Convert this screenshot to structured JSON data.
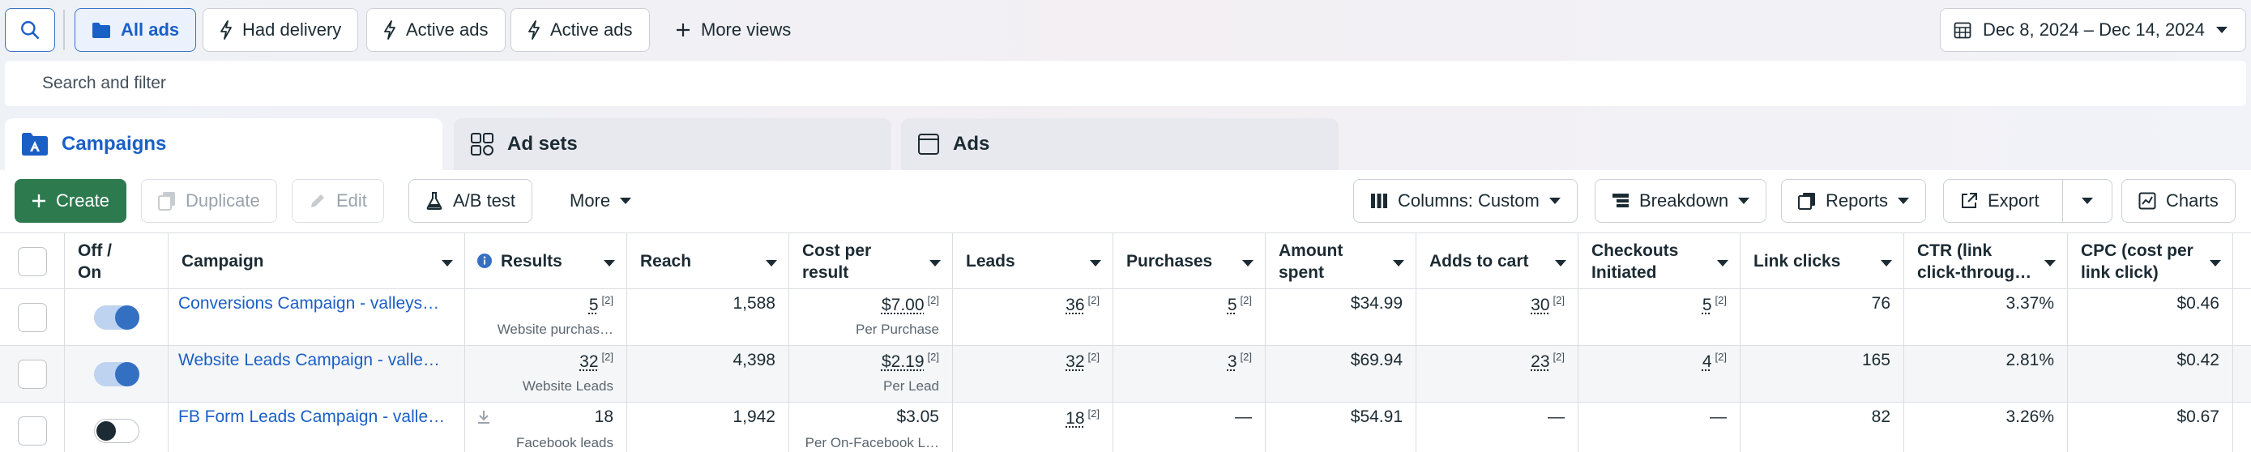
{
  "topbar": {
    "views": [
      {
        "label": "All ads"
      },
      {
        "label": "Had delivery"
      },
      {
        "label": "Active ads"
      },
      {
        "label": "Active ads"
      }
    ],
    "more_views": "More views",
    "date_range": "Dec 8, 2024 – Dec 14, 2024"
  },
  "search": {
    "placeholder": "Search and filter"
  },
  "tabs": {
    "campaigns": "Campaigns",
    "adsets": "Ad sets",
    "ads": "Ads"
  },
  "toolbar": {
    "create": "Create",
    "duplicate": "Duplicate",
    "edit": "Edit",
    "ab_test": "A/B test",
    "more": "More",
    "columns": "Columns: Custom",
    "breakdown": "Breakdown",
    "reports": "Reports",
    "export": "Export",
    "charts": "Charts"
  },
  "table": {
    "headers": {
      "offon_1": "Off /",
      "offon_2": "On",
      "campaign": "Campaign",
      "results": "Results",
      "reach": "Reach",
      "cpr_1": "Cost per",
      "cpr_2": "result",
      "leads": "Leads",
      "purchases": "Purchases",
      "spent_1": "Amount",
      "spent_2": "spent",
      "atc": "Adds to cart",
      "checkout_1": "Checkouts",
      "checkout_2": "Initiated",
      "link_clicks": "Link clicks",
      "ctr_1": "CTR (link",
      "ctr_2": "click-throug…",
      "cpc_1": "CPC (cost per",
      "cpc_2": "link click)"
    },
    "rows": [
      {
        "campaign": "Conversions Campaign - valleys…",
        "status": "on",
        "results": "5",
        "results_sup": "[2]",
        "results_sub": "Website purchas…",
        "reach": "1,588",
        "cpr": "$7.00",
        "cpr_sup": "[2]",
        "cpr_sub": "Per Purchase",
        "leads": "36",
        "leads_sup": "[2]",
        "purchases": "5",
        "purchases_sup": "[2]",
        "spent": "$34.99",
        "atc": "30",
        "atc_sup": "[2]",
        "checkouts": "5",
        "checkouts_sup": "[2]",
        "link_clicks": "76",
        "ctr": "3.37%",
        "cpc": "$0.46"
      },
      {
        "campaign": "Website Leads Campaign - valle…",
        "status": "on",
        "results": "32",
        "results_sup": "[2]",
        "results_sub": "Website Leads",
        "reach": "4,398",
        "cpr": "$2.19",
        "cpr_sup": "[2]",
        "cpr_sub": "Per Lead",
        "leads": "32",
        "leads_sup": "[2]",
        "purchases": "3",
        "purchases_sup": "[2]",
        "spent": "$69.94",
        "atc": "23",
        "atc_sup": "[2]",
        "checkouts": "4",
        "checkouts_sup": "[2]",
        "link_clicks": "165",
        "ctr": "2.81%",
        "cpc": "$0.42"
      },
      {
        "campaign": "FB Form Leads Campaign - valle…",
        "status": "off",
        "results": "18",
        "results_sup": "",
        "results_sub": "Facebook leads",
        "reach": "1,942",
        "cpr": "$3.05",
        "cpr_sup": "",
        "cpr_sub": "Per On-Facebook L…",
        "leads": "18",
        "leads_sup": "[2]",
        "purchases": "—",
        "purchases_sup": "",
        "spent": "$54.91",
        "atc": "—",
        "atc_sup": "",
        "checkouts": "—",
        "checkouts_sup": "",
        "link_clicks": "82",
        "ctr": "3.26%",
        "cpc": "$0.67"
      }
    ]
  }
}
